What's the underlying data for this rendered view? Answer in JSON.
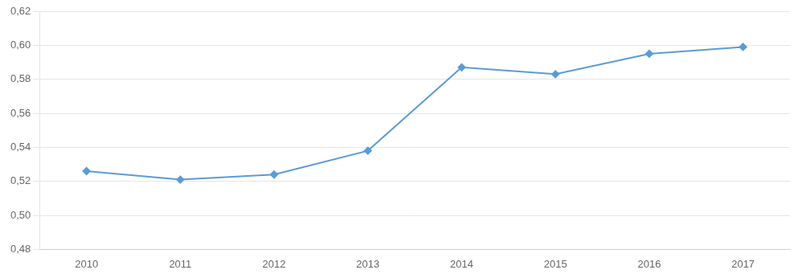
{
  "chart_data": {
    "type": "line",
    "x": [
      2010,
      2011,
      2012,
      2013,
      2014,
      2015,
      2016,
      2017
    ],
    "values": [
      0.526,
      0.521,
      0.524,
      0.538,
      0.587,
      0.583,
      0.595,
      0.599
    ],
    "color": "#5B9BD5",
    "marker": "diamond",
    "xlim": [
      2009.5,
      2017.5
    ],
    "xticks": [
      2010,
      2011,
      2012,
      2013,
      2014,
      2015,
      2016,
      2017
    ],
    "ylim": [
      0.48,
      0.62
    ],
    "yticks": [
      {
        "value": 0.48,
        "label": "0,48"
      },
      {
        "value": 0.5,
        "label": "0,50"
      },
      {
        "value": 0.52,
        "label": "0,52"
      },
      {
        "value": 0.54,
        "label": "0,54"
      },
      {
        "value": 0.56,
        "label": "0,56"
      },
      {
        "value": 0.58,
        "label": "0,58"
      },
      {
        "value": 0.6,
        "label": "0,60"
      },
      {
        "value": 0.62,
        "label": "0,62"
      }
    ],
    "grid": "y"
  }
}
